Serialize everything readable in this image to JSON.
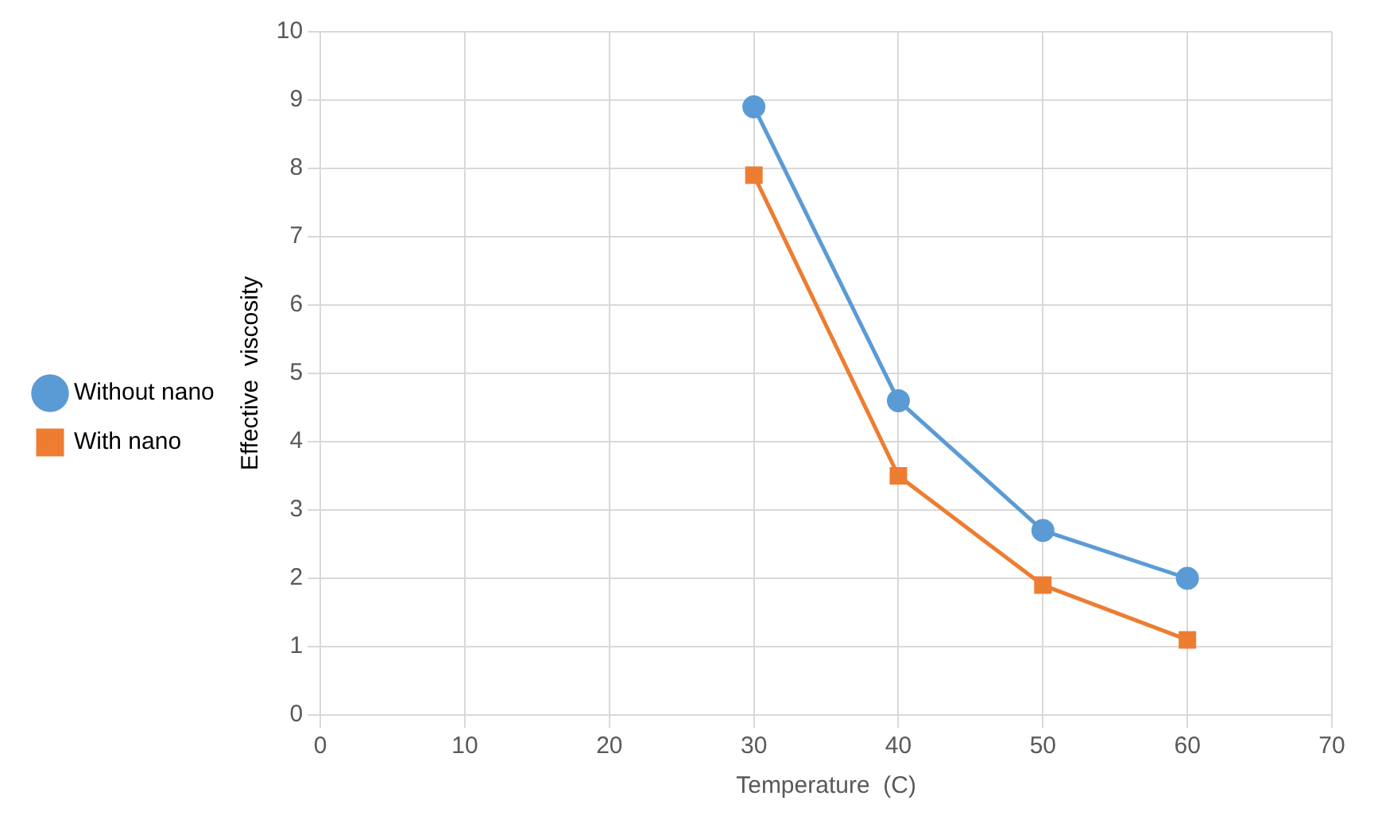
{
  "chart_data": {
    "type": "line",
    "xlabel": "Temperature  (C)",
    "ylabel": "Effective  viscosity",
    "x": [
      30,
      40,
      50,
      60
    ],
    "series": [
      {
        "name": "Without nano",
        "color": "#5b9bd5",
        "marker": "circle",
        "values": [
          8.9,
          4.6,
          2.7,
          2.0
        ]
      },
      {
        "name": "With nano",
        "color": "#ed7d31",
        "marker": "square",
        "values": [
          7.9,
          3.5,
          1.9,
          1.1
        ]
      }
    ],
    "xlim": [
      0,
      70
    ],
    "xticks": [
      0,
      10,
      20,
      30,
      40,
      50,
      60,
      70
    ],
    "ylim": [
      0,
      10
    ],
    "yticks": [
      0,
      1,
      2,
      3,
      4,
      5,
      6,
      7,
      8,
      9,
      10
    ],
    "grid": true,
    "legend": "left"
  }
}
